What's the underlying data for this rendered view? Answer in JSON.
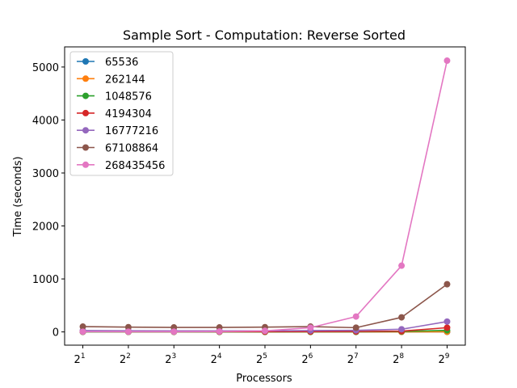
{
  "chart_data": {
    "type": "line",
    "title": "Sample Sort - Computation: Reverse Sorted",
    "xlabel": "Processors",
    "ylabel": "Time (seconds)",
    "x_base": "2",
    "x_exponents": [
      "1",
      "2",
      "3",
      "4",
      "5",
      "6",
      "7",
      "8",
      "9"
    ],
    "x": [
      2,
      4,
      8,
      16,
      32,
      64,
      128,
      256,
      512
    ],
    "y_ticks": [
      "0",
      "1000",
      "2000",
      "3000",
      "4000",
      "5000"
    ],
    "ylim": [
      -250,
      5380
    ],
    "grid": false,
    "legend_position": "upper-left",
    "series": [
      {
        "name": "65536",
        "color": "#1f77b4",
        "values": [
          0.1,
          0.1,
          0.1,
          0.1,
          0.1,
          0.1,
          0.2,
          0.3,
          0.5
        ]
      },
      {
        "name": "262144",
        "color": "#ff7f0e",
        "values": [
          0.4,
          0.3,
          0.3,
          0.3,
          0.3,
          0.4,
          0.6,
          1,
          2
        ]
      },
      {
        "name": "1048576",
        "color": "#2ca02c",
        "values": [
          1.5,
          1.3,
          1.2,
          1.2,
          1.3,
          1.6,
          2.5,
          8,
          30
        ]
      },
      {
        "name": "4194304",
        "color": "#d62728",
        "values": [
          6,
          5,
          5,
          5,
          5,
          6,
          8,
          15,
          80
        ]
      },
      {
        "name": "16777216",
        "color": "#9467bd",
        "values": [
          25,
          22,
          20,
          20,
          21,
          25,
          30,
          50,
          195
        ]
      },
      {
        "name": "67108864",
        "color": "#8c564b",
        "values": [
          100,
          90,
          85,
          85,
          90,
          100,
          80,
          275,
          900
        ]
      },
      {
        "name": "268435456",
        "color": "#e377c2",
        "values": [
          4,
          4,
          5,
          8,
          20,
          80,
          290,
          1250,
          5120
        ]
      }
    ]
  }
}
